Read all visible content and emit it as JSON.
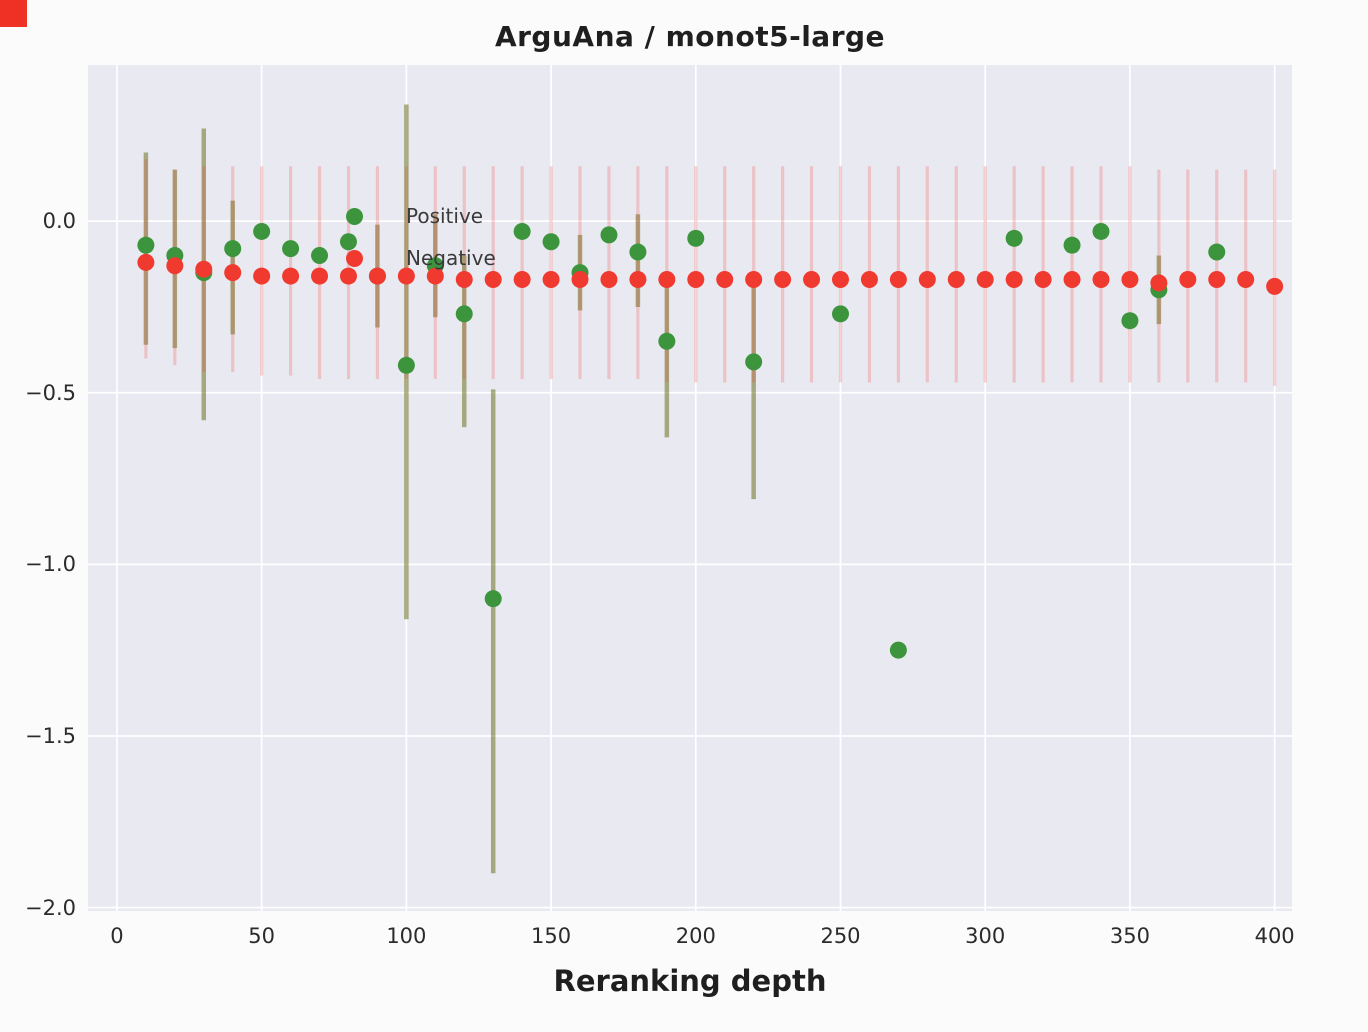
{
  "title": "ArguAna / monot5-large",
  "colors": {
    "positive": "#3c953c",
    "negative": "#f03a30",
    "positive_err": "rgba(110,114,32,0.55)",
    "negative_err": "rgba(240,58,48,0.22)",
    "plot_bg": "#e9e9f1",
    "grid": "#ffffff",
    "corner_marker": "#ee3124"
  },
  "chart_data": {
    "type": "scatter",
    "title": "ArguAna / monot5-large",
    "xlabel": "Reranking depth",
    "ylabel": "",
    "grid": true,
    "legend_position": "upper-left-inside",
    "xlim": [
      -10,
      406
    ],
    "ylim": [
      -2.01,
      0.455
    ],
    "xticks": [
      0,
      50,
      100,
      150,
      200,
      250,
      300,
      350,
      400
    ],
    "yticks": [
      0.0,
      -0.5,
      -1.0,
      -1.5,
      -2.0
    ],
    "ytick_labels": [
      "0.0",
      "−0.5",
      "−1.0",
      "−1.5",
      "−2.0"
    ],
    "point_format": "x, y, err_low, err_high",
    "series": [
      {
        "name": "Positive",
        "marker": "circle",
        "points": [
          [
            10,
            -0.07,
            -0.36,
            0.2
          ],
          [
            20,
            -0.1,
            -0.37,
            0.15
          ],
          [
            30,
            -0.15,
            -0.58,
            0.27
          ],
          [
            40,
            -0.08,
            -0.33,
            0.06
          ],
          [
            50,
            -0.03,
            -0.03,
            -0.03
          ],
          [
            60,
            -0.08,
            -0.08,
            -0.08
          ],
          [
            70,
            -0.1,
            -0.1,
            -0.1
          ],
          [
            80,
            -0.06,
            -0.06,
            -0.06
          ],
          [
            90,
            -0.16,
            -0.31,
            -0.01
          ],
          [
            100,
            -0.42,
            -1.16,
            0.34
          ],
          [
            110,
            -0.13,
            -0.28,
            0.02
          ],
          [
            120,
            -0.27,
            -0.6,
            -0.1
          ],
          [
            130,
            -1.1,
            -1.9,
            -0.49
          ],
          [
            140,
            -0.03,
            -0.03,
            -0.03
          ],
          [
            150,
            -0.06,
            -0.06,
            -0.06
          ],
          [
            160,
            -0.15,
            -0.26,
            -0.04
          ],
          [
            170,
            -0.04,
            -0.04,
            -0.04
          ],
          [
            180,
            -0.09,
            -0.25,
            0.02
          ],
          [
            190,
            -0.35,
            -0.63,
            -0.17
          ],
          [
            200,
            -0.05,
            -0.05,
            -0.05
          ],
          [
            220,
            -0.41,
            -0.81,
            -0.17
          ],
          [
            250,
            -0.27,
            -0.27,
            -0.27
          ],
          [
            270,
            -1.25,
            -1.25,
            -1.25
          ],
          [
            310,
            -0.05,
            -0.05,
            -0.05
          ],
          [
            330,
            -0.07,
            -0.07,
            -0.07
          ],
          [
            340,
            -0.03,
            -0.03,
            -0.03
          ],
          [
            350,
            -0.29,
            -0.29,
            -0.29
          ],
          [
            360,
            -0.2,
            -0.3,
            -0.1
          ],
          [
            380,
            -0.09,
            -0.09,
            -0.09
          ]
        ]
      },
      {
        "name": "Negative",
        "marker": "circle",
        "points": [
          [
            10,
            -0.12,
            -0.4,
            0.18
          ],
          [
            20,
            -0.13,
            -0.42,
            0.15
          ],
          [
            30,
            -0.14,
            -0.44,
            0.16
          ],
          [
            40,
            -0.15,
            -0.44,
            0.16
          ],
          [
            50,
            -0.16,
            -0.45,
            0.16
          ],
          [
            60,
            -0.16,
            -0.45,
            0.16
          ],
          [
            70,
            -0.16,
            -0.46,
            0.16
          ],
          [
            80,
            -0.16,
            -0.46,
            0.16
          ],
          [
            90,
            -0.16,
            -0.46,
            0.16
          ],
          [
            100,
            -0.16,
            -0.46,
            0.16
          ],
          [
            110,
            -0.16,
            -0.46,
            0.16
          ],
          [
            120,
            -0.17,
            -0.46,
            0.16
          ],
          [
            130,
            -0.17,
            -0.46,
            0.16
          ],
          [
            140,
            -0.17,
            -0.46,
            0.16
          ],
          [
            150,
            -0.17,
            -0.46,
            0.16
          ],
          [
            160,
            -0.17,
            -0.46,
            0.16
          ],
          [
            170,
            -0.17,
            -0.46,
            0.16
          ],
          [
            180,
            -0.17,
            -0.46,
            0.16
          ],
          [
            190,
            -0.17,
            -0.47,
            0.16
          ],
          [
            200,
            -0.17,
            -0.47,
            0.16
          ],
          [
            210,
            -0.17,
            -0.47,
            0.16
          ],
          [
            220,
            -0.17,
            -0.47,
            0.16
          ],
          [
            230,
            -0.17,
            -0.47,
            0.16
          ],
          [
            240,
            -0.17,
            -0.47,
            0.16
          ],
          [
            250,
            -0.17,
            -0.47,
            0.16
          ],
          [
            260,
            -0.17,
            -0.47,
            0.16
          ],
          [
            270,
            -0.17,
            -0.47,
            0.16
          ],
          [
            280,
            -0.17,
            -0.47,
            0.16
          ],
          [
            290,
            -0.17,
            -0.47,
            0.16
          ],
          [
            300,
            -0.17,
            -0.47,
            0.16
          ],
          [
            310,
            -0.17,
            -0.47,
            0.16
          ],
          [
            320,
            -0.17,
            -0.47,
            0.16
          ],
          [
            330,
            -0.17,
            -0.47,
            0.16
          ],
          [
            340,
            -0.17,
            -0.47,
            0.16
          ],
          [
            350,
            -0.17,
            -0.47,
            0.16
          ],
          [
            360,
            -0.18,
            -0.47,
            0.15
          ],
          [
            370,
            -0.17,
            -0.47,
            0.15
          ],
          [
            380,
            -0.17,
            -0.47,
            0.15
          ],
          [
            390,
            -0.17,
            -0.47,
            0.15
          ],
          [
            400,
            -0.19,
            -0.48,
            0.15
          ]
        ]
      }
    ]
  }
}
